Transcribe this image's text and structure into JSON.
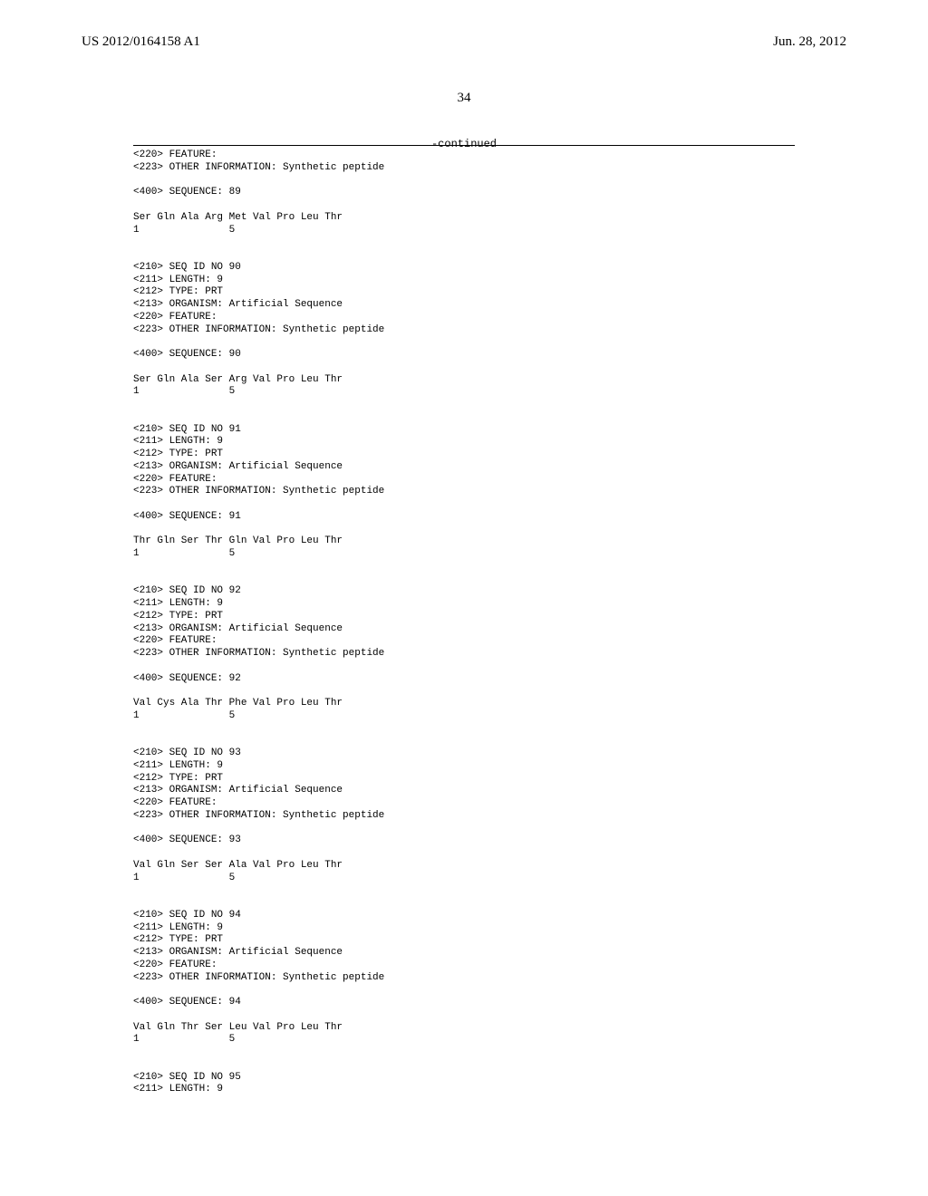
{
  "header": {
    "pub_number": "US 2012/0164158 A1",
    "pub_date": "Jun. 28, 2012",
    "page_number": "34",
    "continued_label": "-continued"
  },
  "blocks": [
    {
      "lines": [
        "<220> FEATURE:",
        "<223> OTHER INFORMATION: Synthetic peptide",
        "",
        "<400> SEQUENCE: 89",
        "",
        "Ser Gln Ala Arg Met Val Pro Leu Thr",
        "1               5",
        "",
        ""
      ]
    },
    {
      "lines": [
        "<210> SEQ ID NO 90",
        "<211> LENGTH: 9",
        "<212> TYPE: PRT",
        "<213> ORGANISM: Artificial Sequence",
        "<220> FEATURE:",
        "<223> OTHER INFORMATION: Synthetic peptide",
        "",
        "<400> SEQUENCE: 90",
        "",
        "Ser Gln Ala Ser Arg Val Pro Leu Thr",
        "1               5",
        "",
        ""
      ]
    },
    {
      "lines": [
        "<210> SEQ ID NO 91",
        "<211> LENGTH: 9",
        "<212> TYPE: PRT",
        "<213> ORGANISM: Artificial Sequence",
        "<220> FEATURE:",
        "<223> OTHER INFORMATION: Synthetic peptide",
        "",
        "<400> SEQUENCE: 91",
        "",
        "Thr Gln Ser Thr Gln Val Pro Leu Thr",
        "1               5",
        "",
        ""
      ]
    },
    {
      "lines": [
        "<210> SEQ ID NO 92",
        "<211> LENGTH: 9",
        "<212> TYPE: PRT",
        "<213> ORGANISM: Artificial Sequence",
        "<220> FEATURE:",
        "<223> OTHER INFORMATION: Synthetic peptide",
        "",
        "<400> SEQUENCE: 92",
        "",
        "Val Cys Ala Thr Phe Val Pro Leu Thr",
        "1               5",
        "",
        ""
      ]
    },
    {
      "lines": [
        "<210> SEQ ID NO 93",
        "<211> LENGTH: 9",
        "<212> TYPE: PRT",
        "<213> ORGANISM: Artificial Sequence",
        "<220> FEATURE:",
        "<223> OTHER INFORMATION: Synthetic peptide",
        "",
        "<400> SEQUENCE: 93",
        "",
        "Val Gln Ser Ser Ala Val Pro Leu Thr",
        "1               5",
        "",
        ""
      ]
    },
    {
      "lines": [
        "<210> SEQ ID NO 94",
        "<211> LENGTH: 9",
        "<212> TYPE: PRT",
        "<213> ORGANISM: Artificial Sequence",
        "<220> FEATURE:",
        "<223> OTHER INFORMATION: Synthetic peptide",
        "",
        "<400> SEQUENCE: 94",
        "",
        "Val Gln Thr Ser Leu Val Pro Leu Thr",
        "1               5",
        "",
        ""
      ]
    },
    {
      "lines": [
        "<210> SEQ ID NO 95",
        "<211> LENGTH: 9"
      ]
    }
  ]
}
